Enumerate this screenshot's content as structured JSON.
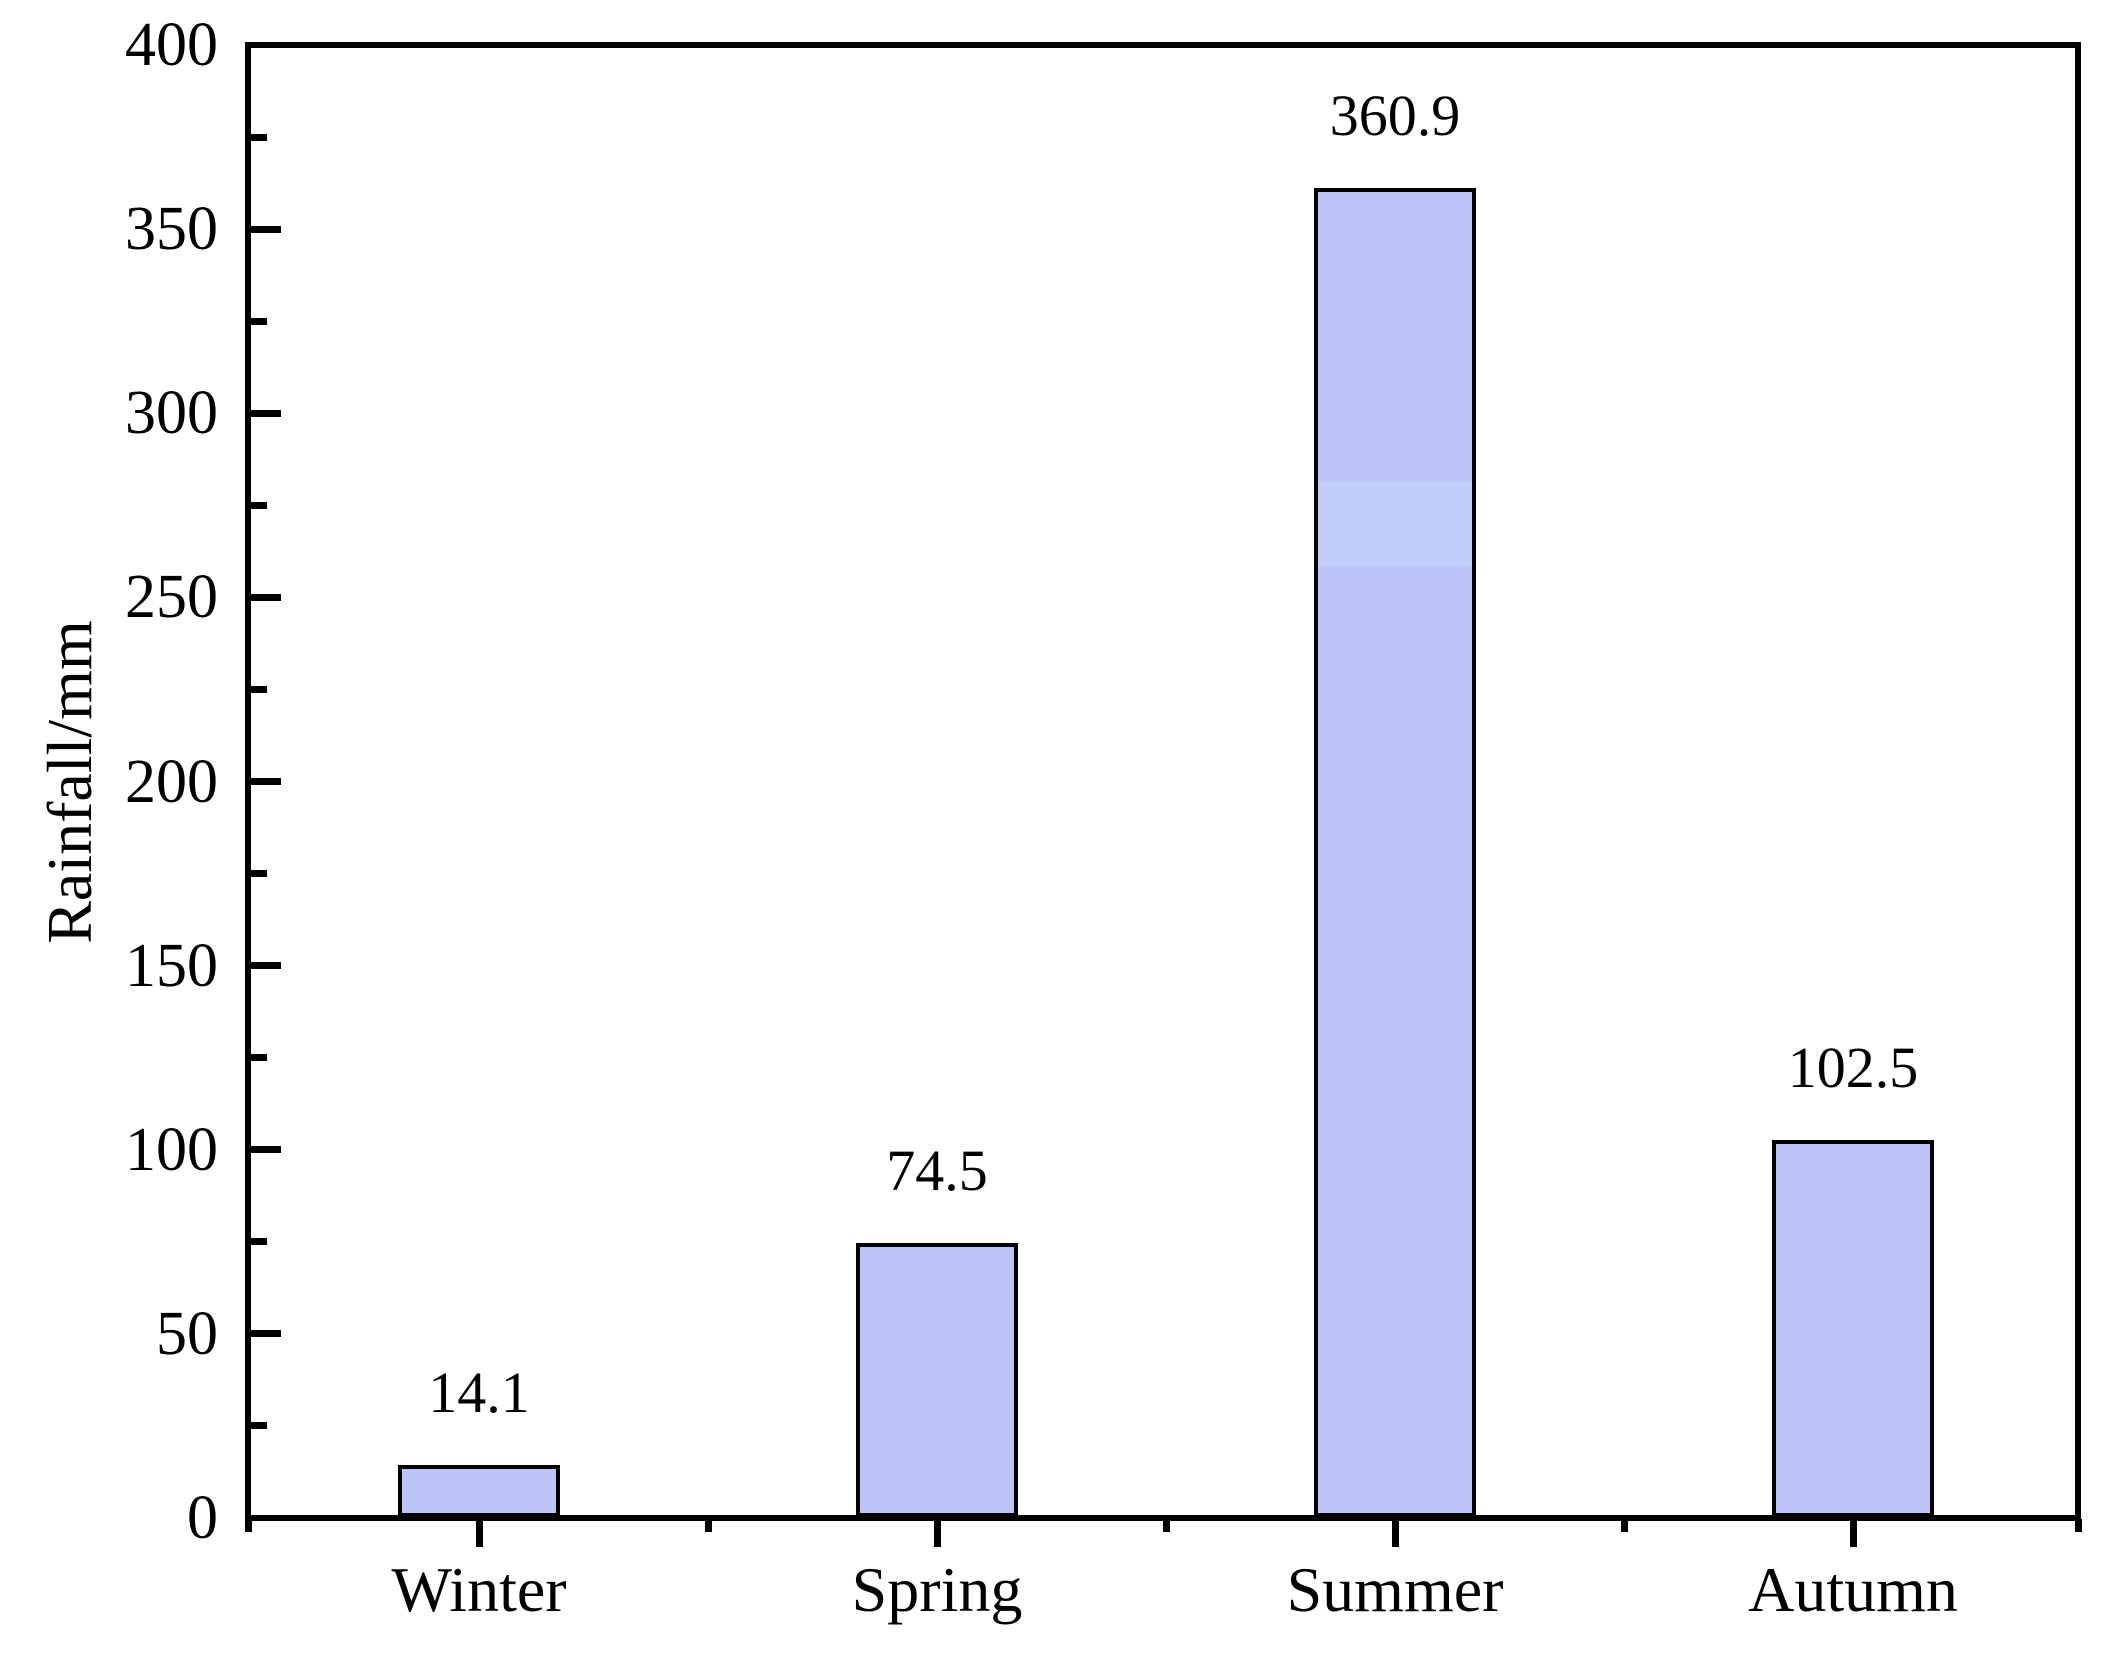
{
  "chart_data": {
    "type": "bar",
    "categories": [
      "Winter",
      "Spring",
      "Summer",
      "Autumn"
    ],
    "values": [
      14.1,
      74.5,
      360.9,
      102.5
    ],
    "value_labels": [
      "14.1",
      "74.5",
      "360.9",
      "102.5"
    ],
    "title": "",
    "xlabel": "",
    "ylabel": "Rainfall/mm",
    "ylim": [
      0,
      400
    ],
    "ytick_major_step": 50,
    "ytick_minor_step": 25,
    "ytick_labels": [
      "0",
      "50",
      "100",
      "150",
      "200",
      "250",
      "300",
      "350",
      "400"
    ],
    "grid": false,
    "legend": false,
    "layout_hints": {
      "tick_direction_y": "in",
      "tick_direction_x": "out",
      "frame": "full-box"
    },
    "colors": {
      "bar_fill": "#bcc4f9",
      "bar_fill_band": "#c3cdfb",
      "bar_border": "#000000",
      "axis": "#000000",
      "text": "#000000",
      "background": "#ffffff"
    }
  }
}
